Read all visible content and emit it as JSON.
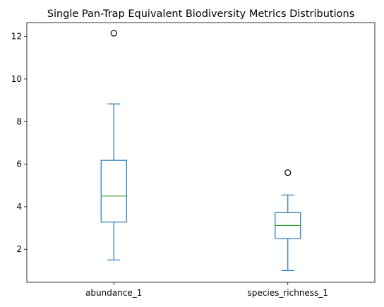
{
  "chart_data": {
    "type": "box",
    "title": "Single Pan-Trap Equivalent Biodiversity Metrics Distributions",
    "xlabel": "",
    "ylabel": "",
    "ylim": [
      0.45,
      12.65
    ],
    "yticks": [
      2,
      4,
      6,
      8,
      10,
      12
    ],
    "grid": false,
    "colors": {
      "box": "#1f77b4",
      "median": "#2ca02c",
      "outlier": "#000000"
    },
    "boxes": [
      {
        "label": "abundance_1",
        "whisker_low": 1.5,
        "q1": 3.28,
        "median": 4.5,
        "q3": 6.18,
        "whisker_high": 8.83,
        "outliers": [
          12.15
        ]
      },
      {
        "label": "species_richness_1",
        "whisker_low": 1.0,
        "q1": 2.5,
        "median": 3.12,
        "q3": 3.72,
        "whisker_high": 4.55,
        "outliers": [
          5.6
        ]
      }
    ]
  }
}
